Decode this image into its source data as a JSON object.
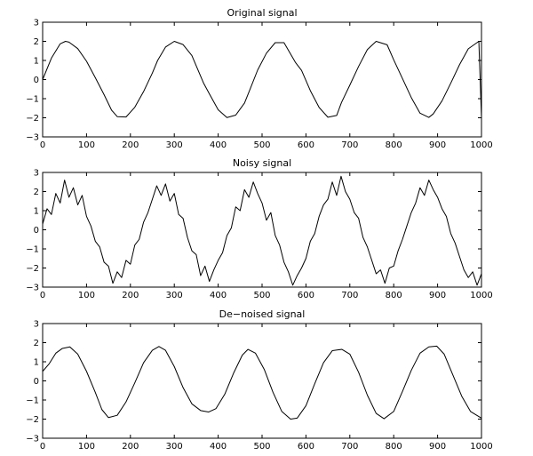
{
  "chart_data": [
    {
      "type": "line",
      "title": "Original signal",
      "xlim": [
        0,
        1000
      ],
      "ylim": [
        -3,
        3
      ],
      "xticks": [
        0,
        100,
        200,
        300,
        400,
        500,
        600,
        700,
        800,
        900,
        1000
      ],
      "yticks": [
        -3,
        -2,
        -1,
        0,
        1,
        2,
        3
      ],
      "grid": false,
      "line_color": "#000000",
      "series": [
        {
          "x": [
            0,
            20,
            40,
            52,
            60,
            80,
            100,
            120,
            140,
            157,
            170,
            190,
            210,
            230,
            250,
            262,
            280,
            300,
            320,
            340,
            367,
            380,
            400,
            420,
            440,
            460,
            471,
            490,
            510,
            530,
            550,
            576,
            590,
            610,
            630,
            650,
            670,
            681,
            700,
            720,
            740,
            760,
            785,
            800,
            820,
            840,
            860,
            880,
            890,
            910,
            930,
            950,
            970,
            994,
            1000
          ],
          "y": [
            0,
            1.12,
            1.87,
            2.0,
            1.96,
            1.62,
            0.96,
            0.1,
            -0.79,
            -1.6,
            -1.94,
            -1.96,
            -1.45,
            -0.63,
            0.34,
            1.0,
            1.7,
            2.0,
            1.83,
            1.26,
            -0.2,
            -0.75,
            -1.58,
            -1.99,
            -1.86,
            -1.23,
            -0.6,
            0.5,
            1.38,
            1.93,
            1.93,
            0.9,
            0.48,
            -0.58,
            -1.46,
            -1.97,
            -1.88,
            -1.2,
            -0.29,
            0.69,
            1.57,
            2.0,
            1.82,
            1.03,
            0.05,
            -0.94,
            -1.76,
            -1.98,
            -1.8,
            -1.12,
            -0.19,
            0.78,
            1.61,
            2.0,
            -2.0
          ]
        }
      ]
    },
    {
      "type": "line",
      "title": "Noisy signal",
      "xlim": [
        0,
        1000
      ],
      "ylim": [
        -3,
        3
      ],
      "xticks": [
        0,
        100,
        200,
        300,
        400,
        500,
        600,
        700,
        800,
        900,
        1000
      ],
      "yticks": [
        -3,
        -2,
        -1,
        0,
        1,
        2,
        3
      ],
      "grid": false,
      "line_color": "#000000",
      "series": [
        {
          "x": [
            0,
            10,
            20,
            30,
            40,
            50,
            60,
            70,
            80,
            90,
            100,
            110,
            120,
            130,
            140,
            150,
            160,
            170,
            180,
            190,
            200,
            210,
            220,
            230,
            240,
            250,
            260,
            270,
            280,
            290,
            300,
            310,
            320,
            330,
            340,
            350,
            360,
            370,
            380,
            390,
            400,
            410,
            420,
            430,
            440,
            450,
            460,
            470,
            480,
            490,
            500,
            510,
            520,
            530,
            540,
            550,
            560,
            570,
            580,
            590,
            600,
            610,
            620,
            630,
            640,
            650,
            660,
            670,
            680,
            690,
            700,
            710,
            720,
            730,
            740,
            750,
            760,
            770,
            780,
            790,
            800,
            810,
            820,
            830,
            840,
            850,
            860,
            870,
            880,
            890,
            900,
            910,
            920,
            930,
            940,
            950,
            960,
            970,
            980,
            990,
            1000
          ],
          "y": [
            0.3,
            1.1,
            0.8,
            1.9,
            1.4,
            2.6,
            1.7,
            2.2,
            1.3,
            1.8,
            0.7,
            0.2,
            -0.6,
            -0.9,
            -1.7,
            -1.9,
            -2.8,
            -2.2,
            -2.5,
            -1.6,
            -1.8,
            -0.8,
            -0.5,
            0.4,
            0.9,
            1.6,
            2.3,
            1.8,
            2.4,
            1.5,
            1.9,
            0.8,
            0.6,
            -0.4,
            -1.1,
            -1.3,
            -2.4,
            -1.9,
            -2.7,
            -2.1,
            -1.6,
            -1.2,
            -0.3,
            0.1,
            1.2,
            1.0,
            2.1,
            1.7,
            2.5,
            1.9,
            1.4,
            0.5,
            0.9,
            -0.3,
            -0.8,
            -1.7,
            -2.2,
            -2.9,
            -2.4,
            -2.0,
            -1.5,
            -0.6,
            -0.2,
            0.7,
            1.3,
            1.6,
            2.5,
            1.8,
            2.8,
            2.0,
            1.6,
            0.9,
            0.6,
            -0.4,
            -0.9,
            -1.6,
            -2.3,
            -2.1,
            -2.8,
            -2.0,
            -1.9,
            -1.1,
            -0.5,
            0.2,
            0.9,
            1.4,
            2.2,
            1.8,
            2.6,
            2.1,
            1.7,
            1.1,
            0.7,
            -0.2,
            -0.7,
            -1.4,
            -2.1,
            -2.5,
            -2.2,
            -2.9,
            -2.3
          ]
        }
      ]
    },
    {
      "type": "line",
      "title": "De−noised signal",
      "xlim": [
        0,
        1000
      ],
      "ylim": [
        -3,
        3
      ],
      "xticks": [
        0,
        100,
        200,
        300,
        400,
        500,
        600,
        700,
        800,
        900,
        1000
      ],
      "yticks": [
        -3,
        -2,
        -1,
        0,
        1,
        2,
        3
      ],
      "grid": false,
      "line_color": "#000000",
      "series": [
        {
          "x": [
            0,
            15,
            30,
            45,
            62,
            80,
            100,
            120,
            135,
            150,
            170,
            190,
            210,
            230,
            250,
            265,
            280,
            300,
            320,
            340,
            360,
            378,
            395,
            415,
            435,
            455,
            468,
            485,
            505,
            525,
            545,
            565,
            580,
            600,
            620,
            640,
            660,
            682,
            700,
            720,
            740,
            760,
            778,
            800,
            820,
            840,
            860,
            880,
            898,
            915,
            935,
            955,
            975,
            1000
          ],
          "y": [
            0.5,
            0.9,
            1.45,
            1.7,
            1.78,
            1.4,
            0.5,
            -0.6,
            -1.5,
            -1.92,
            -1.8,
            -1.1,
            -0.1,
            0.95,
            1.6,
            1.8,
            1.6,
            0.75,
            -0.35,
            -1.2,
            -1.55,
            -1.63,
            -1.45,
            -0.7,
            0.4,
            1.35,
            1.65,
            1.45,
            0.6,
            -0.6,
            -1.6,
            -2.0,
            -1.95,
            -1.3,
            -0.15,
            0.95,
            1.58,
            1.65,
            1.4,
            0.45,
            -0.75,
            -1.7,
            -1.98,
            -1.6,
            -0.55,
            0.55,
            1.45,
            1.78,
            1.82,
            1.4,
            0.3,
            -0.8,
            -1.6,
            -1.95
          ]
        }
      ]
    }
  ]
}
